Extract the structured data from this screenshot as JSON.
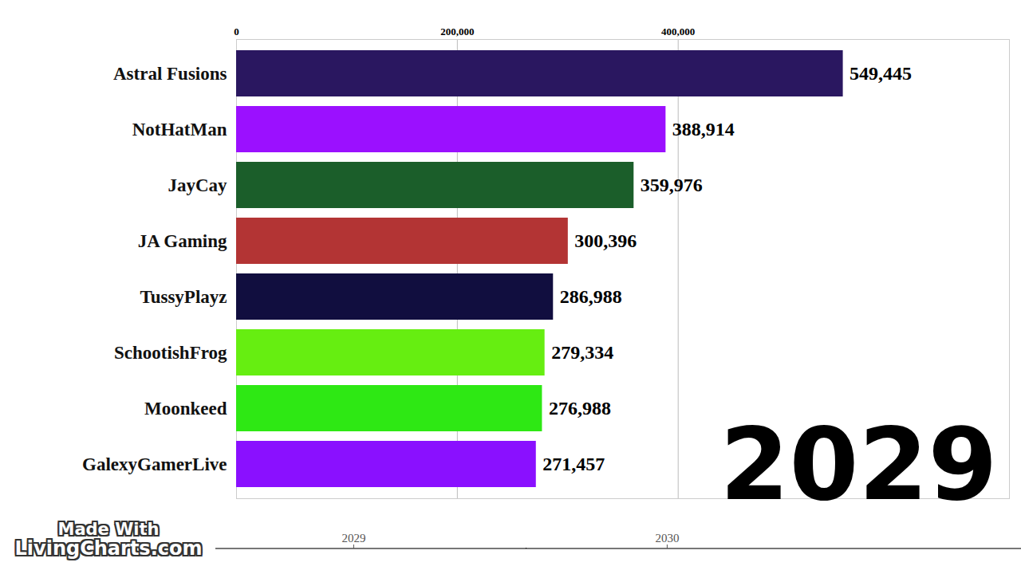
{
  "chart_data": [
    {
      "type": "bar",
      "orientation": "horizontal",
      "categories": [
        "Astral Fusions",
        "NotHatMan",
        "JayCay",
        "JA Gaming",
        "TussyPlayz",
        "SchootishFrog",
        "Moonkeed",
        "GalexyGamerLive"
      ],
      "values": [
        549445,
        388914,
        359976,
        300396,
        286988,
        279334,
        276988,
        271457
      ],
      "value_labels": [
        "549,445",
        "388,914",
        "359,976",
        "300,396",
        "286,988",
        "279,334",
        "276,988",
        "271,457"
      ],
      "colors": [
        "#2a1760",
        "#9b10ff",
        "#1b5e2a",
        "#b33434",
        "#110e3f",
        "#66ee11",
        "#2ee814",
        "#8a10ff"
      ],
      "xlim": [
        0,
        700000
      ],
      "xticks": [
        0,
        {
          "value": 200000,
          "label": "200,000"
        },
        {
          "value": 400000,
          "label": "400,000"
        }
      ],
      "grid": true,
      "data_labels": true,
      "annotations": [
        "2029"
      ]
    },
    {
      "type": "timeline",
      "xlim": [
        2028.56,
        2031.13
      ],
      "xticks": [
        2029,
        2030
      ],
      "values": [
        2029.55
      ],
      "annotations": [
        "Made With",
        "LivingCharts.com"
      ]
    }
  ]
}
